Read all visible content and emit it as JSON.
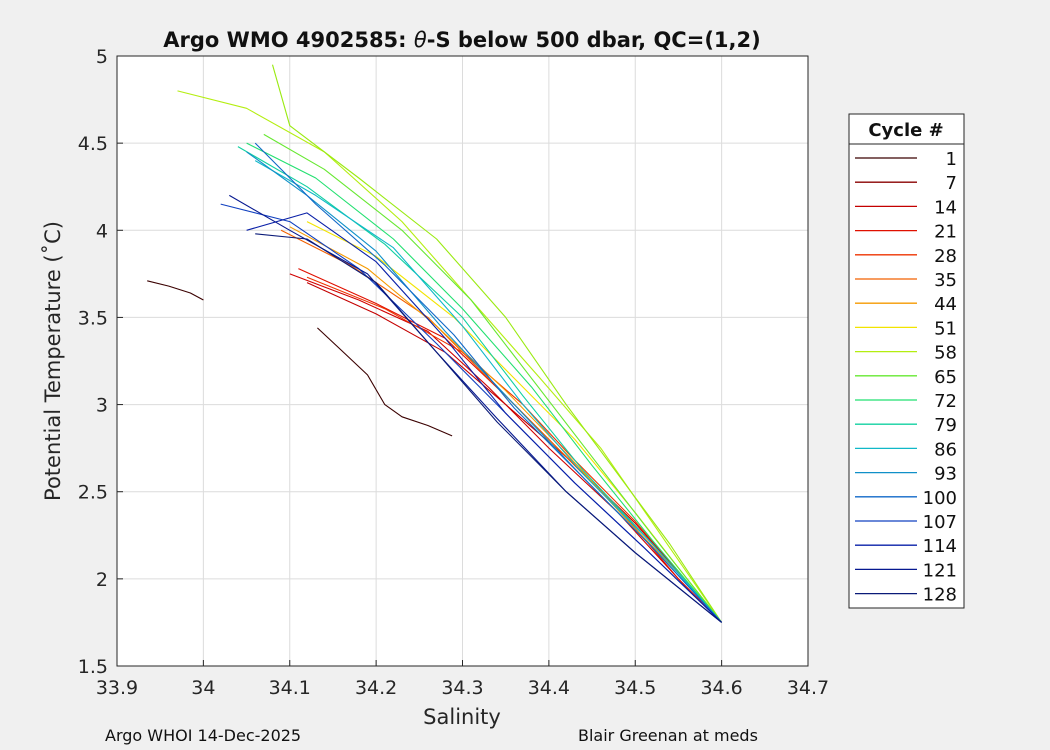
{
  "chart_data": {
    "type": "line",
    "title_prefix": "Argo WMO 4902585: ",
    "title_theta": "θ",
    "title_suffix": "-S below 500 dbar,  QC=(1,2)",
    "xlabel": "Salinity",
    "ylabel": "Potential Temperature (˚C)",
    "xlim": [
      33.9,
      34.7
    ],
    "ylim": [
      1.5,
      5
    ],
    "xticks": [
      33.9,
      34,
      34.1,
      34.2,
      34.3,
      34.4,
      34.5,
      34.6,
      34.7
    ],
    "xtick_labels": [
      "33.9",
      "34",
      "34.1",
      "34.2",
      "34.3",
      "34.4",
      "34.5",
      "34.6",
      "34.7"
    ],
    "yticks": [
      1.5,
      2,
      2.5,
      3,
      3.5,
      4,
      4.5,
      5
    ],
    "ytick_labels": [
      "1.5",
      "2",
      "2.5",
      "3",
      "3.5",
      "4",
      "4.5",
      "5"
    ],
    "grid": true,
    "legend": {
      "title": "Cycle #",
      "position": "right",
      "entries": [
        {
          "label": "1",
          "color": "#3a0000"
        },
        {
          "label": "7",
          "color": "#8a0000"
        },
        {
          "label": "14",
          "color": "#c40000"
        },
        {
          "label": "21",
          "color": "#e01000"
        },
        {
          "label": "28",
          "color": "#ee3300"
        },
        {
          "label": "35",
          "color": "#f26000"
        },
        {
          "label": "44",
          "color": "#f59a00"
        },
        {
          "label": "51",
          "color": "#f2e400"
        },
        {
          "label": "58",
          "color": "#b4ee10"
        },
        {
          "label": "65",
          "color": "#66e830"
        },
        {
          "label": "72",
          "color": "#22e070"
        },
        {
          "label": "79",
          "color": "#10d0a0"
        },
        {
          "label": "86",
          "color": "#10b8c8"
        },
        {
          "label": "93",
          "color": "#1090c8"
        },
        {
          "label": "100",
          "color": "#1068c8"
        },
        {
          "label": "107",
          "color": "#1040c0"
        },
        {
          "label": "114",
          "color": "#0a20a8"
        },
        {
          "label": "121",
          "color": "#061890"
        },
        {
          "label": "128",
          "color": "#0a1a78"
        }
      ]
    },
    "series": [
      {
        "name": "1a",
        "color": "#3a0000",
        "x": [
          33.935,
          33.96,
          33.985,
          34.0
        ],
        "y": [
          3.71,
          3.68,
          3.64,
          3.6
        ]
      },
      {
        "name": "1b",
        "color": "#3a0000",
        "x": [
          34.132,
          34.16,
          34.19,
          34.21,
          34.23,
          34.26,
          34.288
        ],
        "y": [
          3.44,
          3.31,
          3.17,
          3.0,
          2.93,
          2.88,
          2.82
        ]
      },
      {
        "name": "red-1",
        "color": "#d00000",
        "x": [
          34.1,
          34.18,
          34.26,
          34.33,
          34.4,
          34.48,
          34.55,
          34.6
        ],
        "y": [
          3.75,
          3.6,
          3.42,
          3.1,
          2.75,
          2.38,
          2.0,
          1.75
        ]
      },
      {
        "name": "red-2",
        "color": "#e01000",
        "x": [
          34.11,
          34.2,
          34.28,
          34.35,
          34.42,
          34.49,
          34.55,
          34.6
        ],
        "y": [
          3.78,
          3.58,
          3.38,
          3.05,
          2.7,
          2.35,
          2.0,
          1.75
        ]
      },
      {
        "name": "red-3",
        "color": "#ee3300",
        "x": [
          34.12,
          34.21,
          34.3,
          34.37,
          34.43,
          34.5,
          34.56,
          34.6
        ],
        "y": [
          3.73,
          3.55,
          3.3,
          3.0,
          2.68,
          2.33,
          1.98,
          1.75
        ]
      },
      {
        "name": "red-4",
        "color": "#c40000",
        "x": [
          34.12,
          34.2,
          34.28,
          34.35,
          34.42,
          34.5,
          34.56,
          34.6
        ],
        "y": [
          3.7,
          3.52,
          3.3,
          3.0,
          2.7,
          2.32,
          1.98,
          1.75
        ]
      },
      {
        "name": "orange-1",
        "color": "#f26000",
        "x": [
          34.09,
          34.17,
          34.26,
          34.34,
          34.41,
          34.49,
          34.56,
          34.6
        ],
        "y": [
          4.0,
          3.8,
          3.5,
          3.1,
          2.75,
          2.36,
          1.98,
          1.75
        ]
      },
      {
        "name": "orange-2",
        "color": "#f59a00",
        "x": [
          34.1,
          34.19,
          34.27,
          34.35,
          34.42,
          34.49,
          34.56,
          34.6
        ],
        "y": [
          4.02,
          3.78,
          3.45,
          3.08,
          2.72,
          2.34,
          1.98,
          1.75
        ]
      },
      {
        "name": "yellow-1",
        "color": "#f2e400",
        "x": [
          34.12,
          34.2,
          34.29,
          34.36,
          34.43,
          34.5,
          34.56,
          34.6
        ],
        "y": [
          4.05,
          3.85,
          3.5,
          3.15,
          2.8,
          2.38,
          2.0,
          1.75
        ]
      },
      {
        "name": "green-1",
        "color": "#b4ee10",
        "x": [
          33.97,
          34.05,
          34.14,
          34.23,
          34.31,
          34.39,
          34.46,
          34.53,
          34.6
        ],
        "y": [
          4.8,
          4.7,
          4.45,
          4.05,
          3.6,
          3.15,
          2.75,
          2.25,
          1.75
        ]
      },
      {
        "name": "green-2",
        "color": "#99ea10",
        "x": [
          34.08,
          34.1,
          34.18,
          34.27,
          34.35,
          34.42,
          34.48,
          34.54,
          34.6
        ],
        "y": [
          4.95,
          4.6,
          4.3,
          3.95,
          3.5,
          3.0,
          2.6,
          2.2,
          1.75
        ]
      },
      {
        "name": "green-3",
        "color": "#66e830",
        "x": [
          34.07,
          34.14,
          34.23,
          34.31,
          34.38,
          34.45,
          34.52,
          34.6
        ],
        "y": [
          4.55,
          4.35,
          4.0,
          3.6,
          3.15,
          2.7,
          2.25,
          1.75
        ]
      },
      {
        "name": "green-4",
        "color": "#22e070",
        "x": [
          34.05,
          34.13,
          34.22,
          34.3,
          34.38,
          34.45,
          34.52,
          34.6
        ],
        "y": [
          4.5,
          4.3,
          3.95,
          3.55,
          3.1,
          2.65,
          2.22,
          1.75
        ]
      },
      {
        "name": "cyan-1",
        "color": "#10d0a0",
        "x": [
          34.04,
          34.12,
          34.21,
          34.3,
          34.37,
          34.44,
          34.52,
          34.6
        ],
        "y": [
          4.48,
          4.25,
          3.92,
          3.5,
          3.05,
          2.62,
          2.2,
          1.75
        ]
      },
      {
        "name": "cyan-2",
        "color": "#10b8c8",
        "x": [
          34.06,
          34.13,
          34.22,
          34.3,
          34.37,
          34.44,
          34.52,
          34.6
        ],
        "y": [
          4.4,
          4.2,
          3.9,
          3.45,
          3.0,
          2.6,
          2.2,
          1.75
        ]
      },
      {
        "name": "blue-1",
        "color": "#1090c8",
        "x": [
          34.05,
          34.12,
          34.2,
          34.28,
          34.36,
          34.44,
          34.52,
          34.6
        ],
        "y": [
          4.45,
          4.2,
          3.88,
          3.42,
          3.0,
          2.58,
          2.18,
          1.75
        ]
      },
      {
        "name": "blue-2",
        "color": "#1068c8",
        "x": [
          34.06,
          34.13,
          34.21,
          34.29,
          34.36,
          34.44,
          34.52,
          34.6
        ],
        "y": [
          4.5,
          4.15,
          3.8,
          3.4,
          2.98,
          2.58,
          2.18,
          1.75
        ]
      },
      {
        "name": "blue-3",
        "color": "#1040c0",
        "x": [
          34.02,
          34.1,
          34.18,
          34.27,
          34.35,
          34.43,
          34.51,
          34.6
        ],
        "y": [
          4.15,
          4.05,
          3.78,
          3.35,
          2.95,
          2.55,
          2.18,
          1.75
        ]
      },
      {
        "name": "blue-4",
        "color": "#0a20a8",
        "x": [
          34.05,
          34.12,
          34.2,
          34.28,
          34.35,
          34.43,
          34.51,
          34.6
        ],
        "y": [
          4.0,
          4.1,
          3.82,
          3.38,
          2.95,
          2.55,
          2.18,
          1.75
        ]
      },
      {
        "name": "navy-1",
        "color": "#061890",
        "x": [
          34.03,
          34.1,
          34.19,
          34.27,
          34.34,
          34.42,
          34.5,
          34.6
        ],
        "y": [
          4.2,
          4.0,
          3.75,
          3.3,
          2.92,
          2.5,
          2.15,
          1.75
        ]
      },
      {
        "name": "navy-2",
        "color": "#0a1a78",
        "x": [
          34.06,
          34.12,
          34.2,
          34.27,
          34.34,
          34.42,
          34.5,
          34.6
        ],
        "y": [
          3.98,
          3.95,
          3.7,
          3.3,
          2.9,
          2.5,
          2.15,
          1.75
        ]
      }
    ]
  },
  "footer": {
    "left": "Argo WHOI 14-Dec-2025",
    "right": "Blair Greenan at meds"
  }
}
